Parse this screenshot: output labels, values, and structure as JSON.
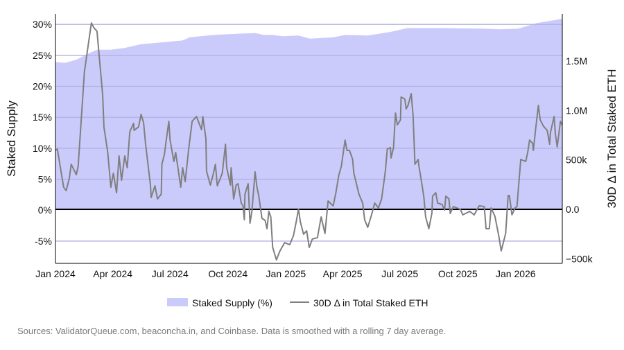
{
  "chart_data": {
    "type": "area+line",
    "ylabel_left": "Staked Supply",
    "ylabel_right": "30D Δ in Total Staked ETH",
    "ylim_left": [
      -8.6,
      31.7
    ],
    "ylim_right": [
      -547000,
      1978000
    ],
    "xlim": [
      "2024-01-01",
      "2026-03-16"
    ],
    "grid": true,
    "legend_placement": "bottom",
    "x_ticks": [
      {
        "date": "2024-01-01",
        "label": "Jan 2024"
      },
      {
        "date": "2024-04-01",
        "label": "Apr 2024"
      },
      {
        "date": "2024-07-01",
        "label": "Jul 2024"
      },
      {
        "date": "2024-10-01",
        "label": "Oct 2024"
      },
      {
        "date": "2025-01-01",
        "label": "Jan 2025"
      },
      {
        "date": "2025-04-01",
        "label": "Apr 2025"
      },
      {
        "date": "2025-07-01",
        "label": "Jul 2025"
      },
      {
        "date": "2025-10-01",
        "label": "Oct 2025"
      },
      {
        "date": "2026-01-01",
        "label": "Jan 2026"
      }
    ],
    "y_ticks_left": [
      {
        "value": -5,
        "label": "-5%"
      },
      {
        "value": 0,
        "label": "0%"
      },
      {
        "value": 5,
        "label": "5%"
      },
      {
        "value": 10,
        "label": "10%"
      },
      {
        "value": 15,
        "label": "15%"
      },
      {
        "value": 20,
        "label": "20%"
      },
      {
        "value": 25,
        "label": "25%"
      },
      {
        "value": 30,
        "label": "30%"
      }
    ],
    "y_ticks_right": [
      {
        "value": -500000,
        "label": "−500k"
      },
      {
        "value": 0,
        "label": "0.0"
      },
      {
        "value": 500000,
        "label": "500k"
      },
      {
        "value": 1000000,
        "label": "1.0M"
      },
      {
        "value": 1500000,
        "label": "1.5M"
      }
    ],
    "series": [
      {
        "name": "Staked Supply (%)",
        "type": "area",
        "axis": "left",
        "color": "#cbcbfb",
        "points": [
          [
            "2024-01-01",
            23.9
          ],
          [
            "2024-01-17",
            23.8
          ],
          [
            "2024-02-03",
            24.3
          ],
          [
            "2024-02-22",
            25.3
          ],
          [
            "2024-03-07",
            25.9
          ],
          [
            "2024-03-29",
            25.9
          ],
          [
            "2024-04-20",
            26.2
          ],
          [
            "2024-05-16",
            26.8
          ],
          [
            "2024-06-18",
            27.1
          ],
          [
            "2024-07-21",
            27.4
          ],
          [
            "2024-08-01",
            27.9
          ],
          [
            "2024-09-08",
            28.3
          ],
          [
            "2024-10-17",
            28.5
          ],
          [
            "2024-11-13",
            28.6
          ],
          [
            "2024-11-27",
            28.3
          ],
          [
            "2024-12-11",
            28.3
          ],
          [
            "2024-12-26",
            28.1
          ],
          [
            "2025-01-21",
            28.2
          ],
          [
            "2025-02-08",
            27.7
          ],
          [
            "2025-03-17",
            27.9
          ],
          [
            "2025-04-05",
            28.3
          ],
          [
            "2025-05-11",
            28.2
          ],
          [
            "2025-06-17",
            28.8
          ],
          [
            "2025-07-13",
            29.4
          ],
          [
            "2025-08-30",
            29.4
          ],
          [
            "2025-11-12",
            29.3
          ],
          [
            "2025-12-07",
            29.2
          ],
          [
            "2026-01-05",
            29.3
          ],
          [
            "2026-02-03",
            30.2
          ],
          [
            "2026-03-16",
            30.9
          ]
        ]
      },
      {
        "name": "30D Δ in Total Staked ETH",
        "type": "line",
        "axis": "right",
        "color": "#7f7f7f",
        "points": [
          [
            "2024-01-01",
            596000
          ],
          [
            "2024-01-04",
            610000
          ],
          [
            "2024-01-14",
            224000
          ],
          [
            "2024-01-18",
            189000
          ],
          [
            "2024-01-23",
            315000
          ],
          [
            "2024-01-26",
            456000
          ],
          [
            "2024-02-03",
            350000
          ],
          [
            "2024-02-06",
            435000
          ],
          [
            "2024-02-16",
            1395000
          ],
          [
            "2024-02-27",
            1886000
          ],
          [
            "2024-03-02",
            1837000
          ],
          [
            "2024-03-07",
            1802000
          ],
          [
            "2024-03-16",
            1157000
          ],
          [
            "2024-03-18",
            834000
          ],
          [
            "2024-03-24",
            575000
          ],
          [
            "2024-03-29",
            224000
          ],
          [
            "2024-04-02",
            365000
          ],
          [
            "2024-04-07",
            168000
          ],
          [
            "2024-04-11",
            540000
          ],
          [
            "2024-04-15",
            294000
          ],
          [
            "2024-04-20",
            540000
          ],
          [
            "2024-04-24",
            421000
          ],
          [
            "2024-04-28",
            785000
          ],
          [
            "2024-05-04",
            869000
          ],
          [
            "2024-05-05",
            799000
          ],
          [
            "2024-05-12",
            834000
          ],
          [
            "2024-05-16",
            960000
          ],
          [
            "2024-05-20",
            876000
          ],
          [
            "2024-05-23",
            666000
          ],
          [
            "2024-05-31",
            238000
          ],
          [
            "2024-06-01",
            119000
          ],
          [
            "2024-06-07",
            238000
          ],
          [
            "2024-06-11",
            105000
          ],
          [
            "2024-06-17",
            154000
          ],
          [
            "2024-06-18",
            456000
          ],
          [
            "2024-06-22",
            554000
          ],
          [
            "2024-06-25",
            701000
          ],
          [
            "2024-06-29",
            890000
          ],
          [
            "2024-07-01",
            701000
          ],
          [
            "2024-07-07",
            484000
          ],
          [
            "2024-07-10",
            575000
          ],
          [
            "2024-07-18",
            224000
          ],
          [
            "2024-07-21",
            421000
          ],
          [
            "2024-07-25",
            280000
          ],
          [
            "2024-07-31",
            631000
          ],
          [
            "2024-08-05",
            890000
          ],
          [
            "2024-08-12",
            939000
          ],
          [
            "2024-08-20",
            806000
          ],
          [
            "2024-08-22",
            939000
          ],
          [
            "2024-08-27",
            715000
          ],
          [
            "2024-08-28",
            386000
          ],
          [
            "2024-09-03",
            245000
          ],
          [
            "2024-09-08",
            365000
          ],
          [
            "2024-09-11",
            456000
          ],
          [
            "2024-09-14",
            238000
          ],
          [
            "2024-09-22",
            365000
          ],
          [
            "2024-09-27",
            659000
          ],
          [
            "2024-09-29",
            421000
          ],
          [
            "2024-10-05",
            245000
          ],
          [
            "2024-10-06",
            421000
          ],
          [
            "2024-10-10",
            105000
          ],
          [
            "2024-10-14",
            245000
          ],
          [
            "2024-10-17",
            259000
          ],
          [
            "2024-10-22",
            63000
          ],
          [
            "2024-10-25",
            35000
          ],
          [
            "2024-10-27",
            -105000
          ],
          [
            "2024-10-28",
            154000
          ],
          [
            "2024-11-02",
            259000
          ],
          [
            "2024-11-05",
            -140000
          ],
          [
            "2024-11-08",
            -21000
          ],
          [
            "2024-11-13",
            379000
          ],
          [
            "2024-11-16",
            224000
          ],
          [
            "2024-11-19",
            133000
          ],
          [
            "2024-11-24",
            -91000
          ],
          [
            "2024-11-29",
            -112000
          ],
          [
            "2024-12-02",
            -196000
          ],
          [
            "2024-12-05",
            -21000
          ],
          [
            "2024-12-08",
            -77000
          ],
          [
            "2024-12-11",
            -386000
          ],
          [
            "2024-12-17",
            -512000
          ],
          [
            "2024-12-22",
            -428000
          ],
          [
            "2024-12-30",
            -337000
          ],
          [
            "2025-01-07",
            -358000
          ],
          [
            "2025-01-13",
            -266000
          ],
          [
            "2025-01-18",
            -105000
          ],
          [
            "2025-01-21",
            0
          ],
          [
            "2025-01-24",
            -126000
          ],
          [
            "2025-01-29",
            -252000
          ],
          [
            "2025-02-03",
            -217000
          ],
          [
            "2025-02-07",
            -386000
          ],
          [
            "2025-02-12",
            -301000
          ],
          [
            "2025-02-20",
            -287000
          ],
          [
            "2025-02-26",
            -77000
          ],
          [
            "2025-03-04",
            -245000
          ],
          [
            "2025-03-09",
            84000
          ],
          [
            "2025-03-17",
            35000
          ],
          [
            "2025-03-21",
            154000
          ],
          [
            "2025-03-26",
            343000
          ],
          [
            "2025-03-30",
            435000
          ],
          [
            "2025-04-05",
            701000
          ],
          [
            "2025-04-08",
            596000
          ],
          [
            "2025-04-12",
            596000
          ],
          [
            "2025-04-17",
            505000
          ],
          [
            "2025-04-19",
            365000
          ],
          [
            "2025-04-27",
            154000
          ],
          [
            "2025-05-03",
            63000
          ],
          [
            "2025-05-06",
            -105000
          ],
          [
            "2025-05-11",
            -182000
          ],
          [
            "2025-05-17",
            -56000
          ],
          [
            "2025-05-22",
            63000
          ],
          [
            "2025-05-28",
            14000
          ],
          [
            "2025-06-02",
            105000
          ],
          [
            "2025-06-08",
            386000
          ],
          [
            "2025-06-11",
            610000
          ],
          [
            "2025-06-16",
            624000
          ],
          [
            "2025-06-17",
            519000
          ],
          [
            "2025-06-21",
            624000
          ],
          [
            "2025-06-24",
            974000
          ],
          [
            "2025-06-27",
            855000
          ],
          [
            "2025-07-02",
            904000
          ],
          [
            "2025-07-03",
            1136000
          ],
          [
            "2025-07-09",
            1115000
          ],
          [
            "2025-07-11",
            1016000
          ],
          [
            "2025-07-14",
            1052000
          ],
          [
            "2025-07-19",
            1171000
          ],
          [
            "2025-07-22",
            946000
          ],
          [
            "2025-07-25",
            456000
          ],
          [
            "2025-07-30",
            505000
          ],
          [
            "2025-07-31",
            449000
          ],
          [
            "2025-08-04",
            294000
          ],
          [
            "2025-08-08",
            133000
          ],
          [
            "2025-08-11",
            -77000
          ],
          [
            "2025-08-16",
            -196000
          ],
          [
            "2025-08-21",
            -35000
          ],
          [
            "2025-08-22",
            133000
          ],
          [
            "2025-08-27",
            168000
          ],
          [
            "2025-08-30",
            63000
          ],
          [
            "2025-09-06",
            49000
          ],
          [
            "2025-09-10",
            -7000
          ],
          [
            "2025-09-12",
            133000
          ],
          [
            "2025-09-17",
            105000
          ],
          [
            "2025-09-19",
            -42000
          ],
          [
            "2025-09-24",
            28000
          ],
          [
            "2025-10-05",
            0
          ],
          [
            "2025-10-09",
            -56000
          ],
          [
            "2025-10-20",
            -21000
          ],
          [
            "2025-10-27",
            -56000
          ],
          [
            "2025-11-04",
            35000
          ],
          [
            "2025-11-12",
            28000
          ],
          [
            "2025-11-15",
            -196000
          ],
          [
            "2025-11-20",
            -196000
          ],
          [
            "2025-11-23",
            14000
          ],
          [
            "2025-11-29",
            -70000
          ],
          [
            "2025-12-05",
            -266000
          ],
          [
            "2025-12-09",
            -421000
          ],
          [
            "2025-12-16",
            -245000
          ],
          [
            "2025-12-20",
            140000
          ],
          [
            "2025-12-22",
            140000
          ],
          [
            "2025-12-26",
            -56000
          ],
          [
            "2025-12-31",
            14000
          ],
          [
            "2026-01-03",
            28000
          ],
          [
            "2026-01-09",
            505000
          ],
          [
            "2026-01-17",
            484000
          ],
          [
            "2026-01-20",
            575000
          ],
          [
            "2026-01-23",
            701000
          ],
          [
            "2026-01-28",
            666000
          ],
          [
            "2026-01-29",
            596000
          ],
          [
            "2026-02-02",
            834000
          ],
          [
            "2026-02-06",
            1052000
          ],
          [
            "2026-02-09",
            904000
          ],
          [
            "2026-02-14",
            841000
          ],
          [
            "2026-02-20",
            799000
          ],
          [
            "2026-02-24",
            659000
          ],
          [
            "2026-02-25",
            771000
          ],
          [
            "2026-03-03",
            939000
          ],
          [
            "2026-03-05",
            764000
          ],
          [
            "2026-03-08",
            631000
          ],
          [
            "2026-03-13",
            890000
          ],
          [
            "2026-03-16",
            855000
          ]
        ]
      }
    ]
  },
  "legend": {
    "area_label": "Staked Supply (%)",
    "line_label": "30D Δ in Total Staked ETH"
  },
  "source_note": "Sources: ValidatorQueue.com, beaconcha.in, and Coinbase. Data is smoothed with a rolling 7 day average."
}
